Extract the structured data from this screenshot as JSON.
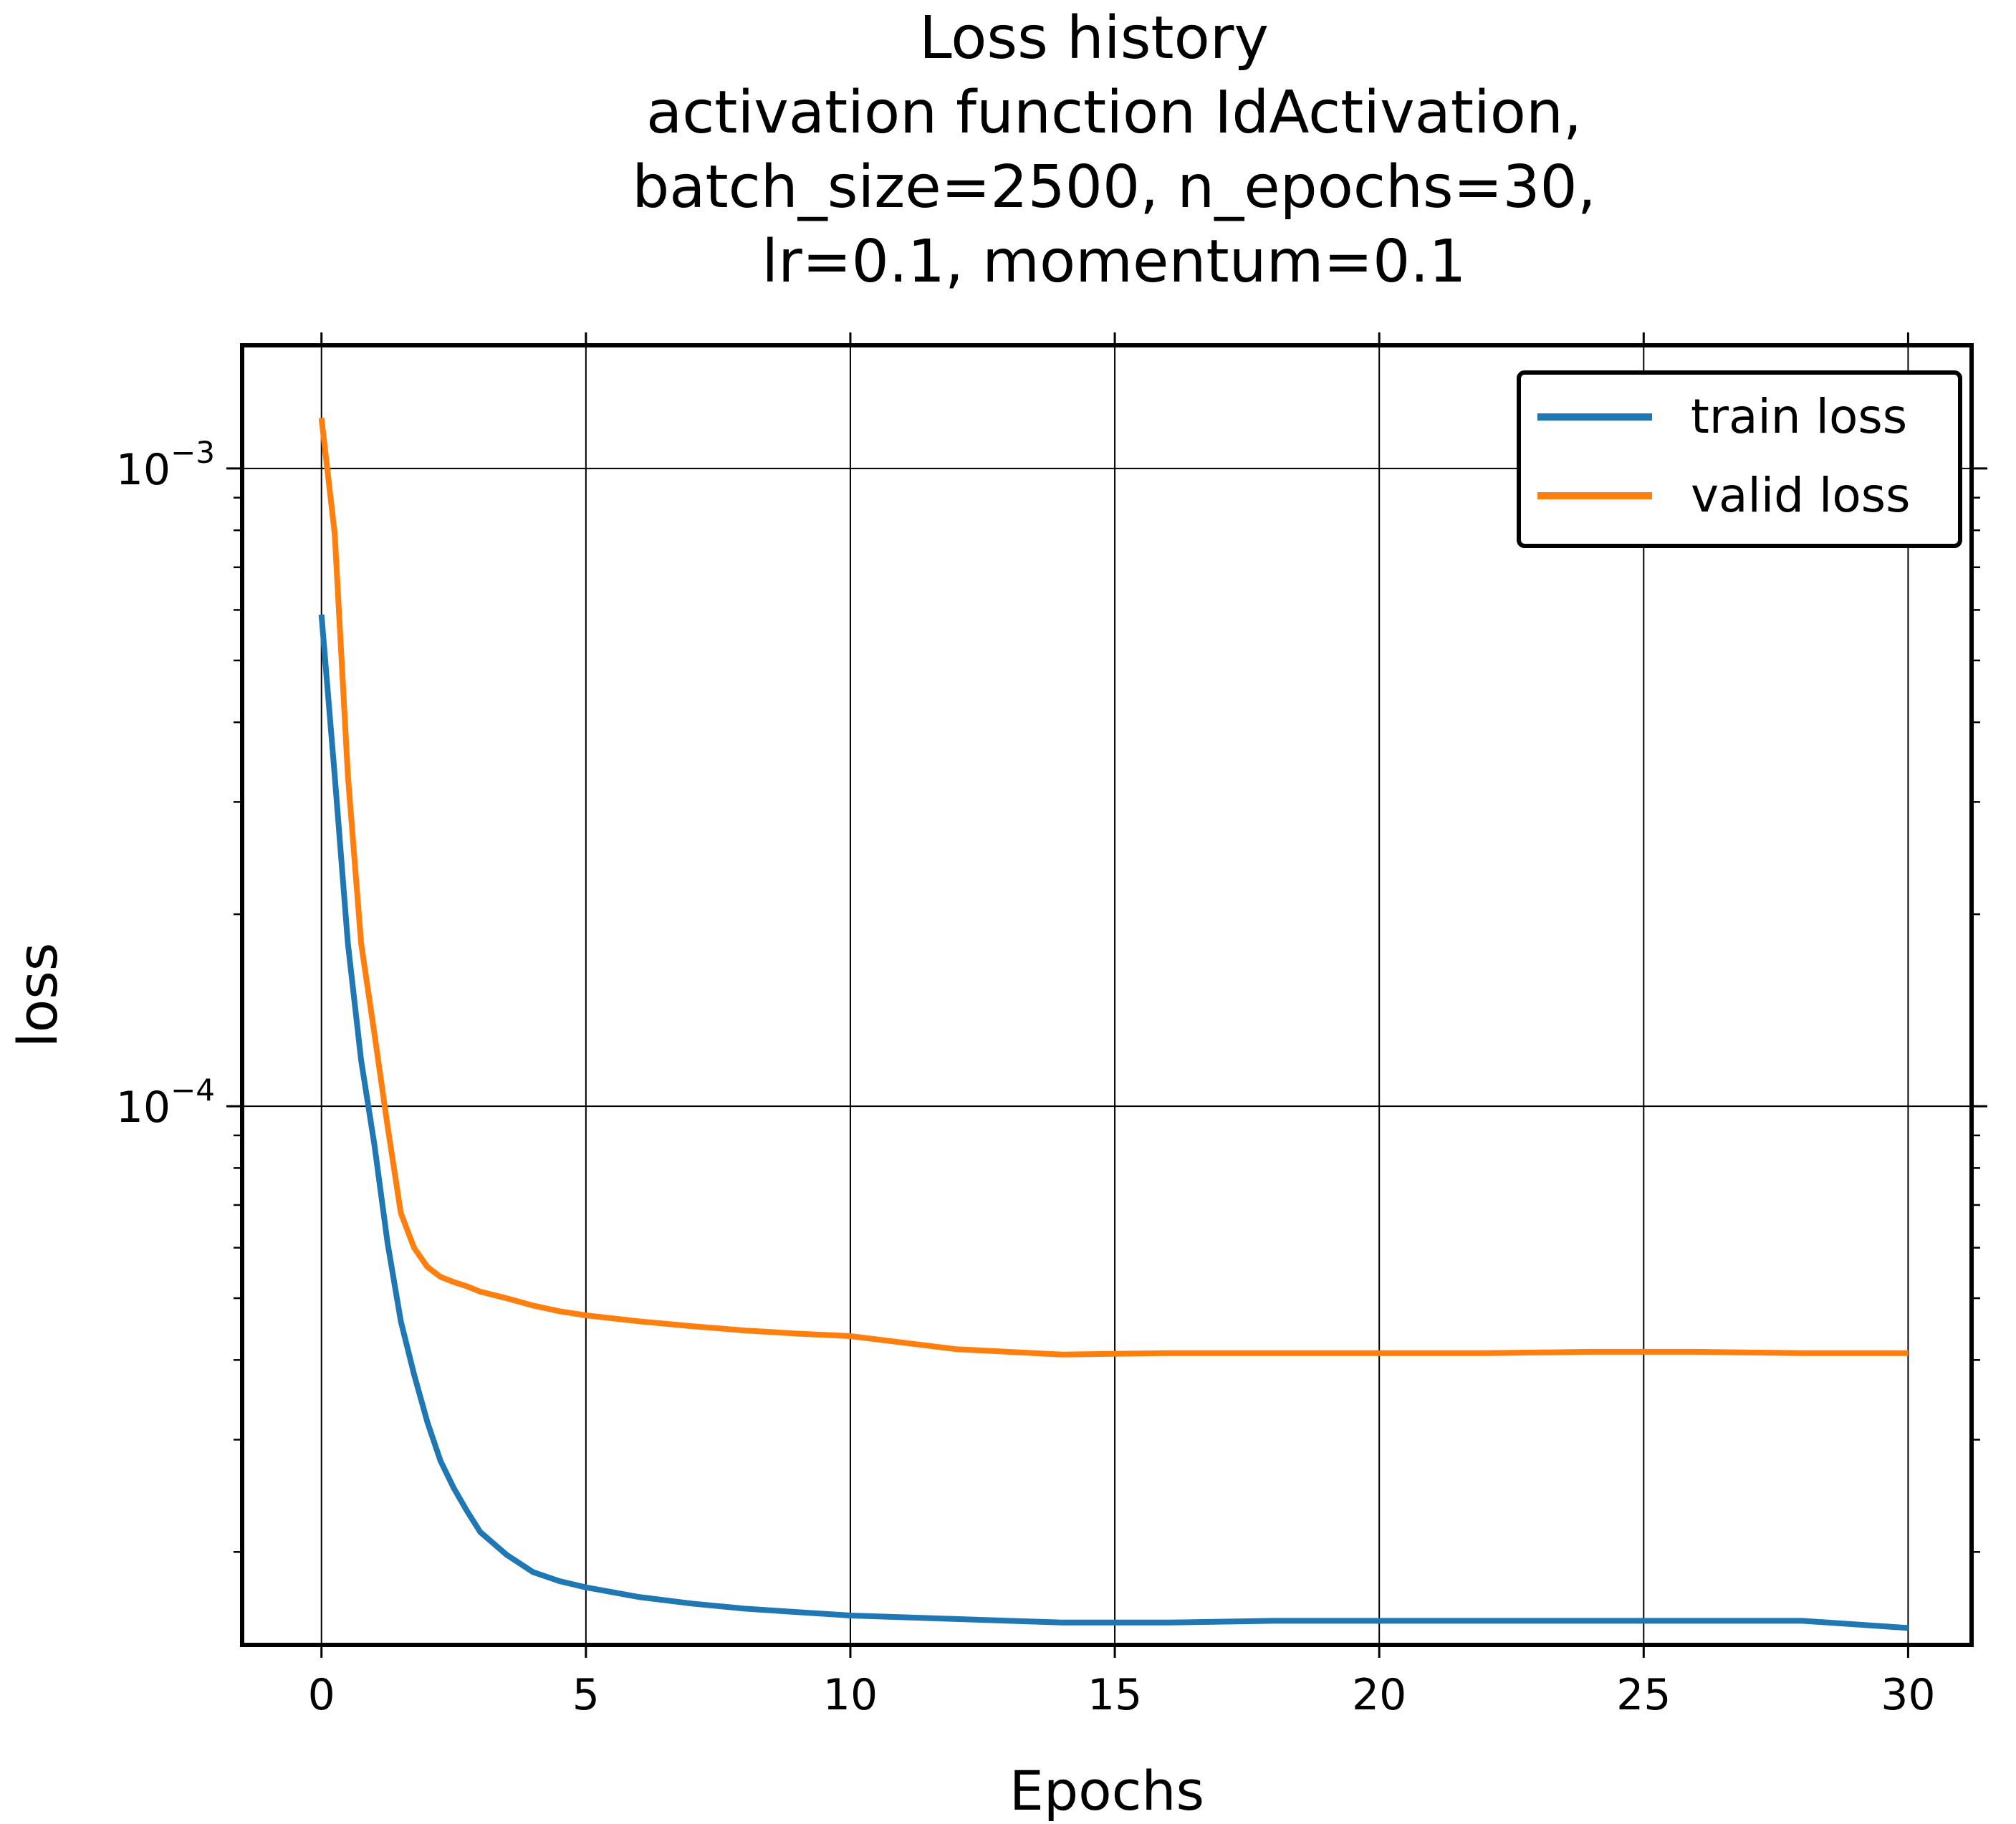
{
  "chart_data": {
    "type": "line",
    "title": "Loss history\nactivation function IdActivation,\nbatch_size=2500, n_epochs=30,\nlr=0.1, momentum=0.1",
    "title_lines": [
      "Loss history",
      "activation function IdActivation,",
      "batch_size=2500, n_epochs=30,",
      "lr=0.1, momentum=0.1"
    ],
    "xlabel": "Epochs",
    "ylabel": "loss",
    "yscale": "log",
    "xlim": [
      -1.5,
      31.2
    ],
    "ylim": [
      1.43e-05,
      0.00156
    ],
    "grid": true,
    "legend_position": "top-right",
    "xticks": [
      0,
      5,
      10,
      15,
      20,
      25,
      30
    ],
    "xtick_labels": [
      "0",
      "5",
      "10",
      "15",
      "20",
      "25",
      "30"
    ],
    "yticks": [
      0.0001,
      0.001
    ],
    "ytick_labels": [
      {
        "base": "10",
        "exp": "−4"
      },
      {
        "base": "10",
        "exp": "−3"
      }
    ],
    "series": [
      {
        "name": "train loss",
        "color": "#1f77b4",
        "x": [
          0,
          0.25,
          0.5,
          0.75,
          1,
          1.25,
          1.5,
          1.75,
          2,
          2.25,
          2.5,
          2.75,
          3,
          3.5,
          4,
          4.5,
          5,
          6,
          7,
          8,
          9,
          10,
          12,
          14,
          16,
          18,
          20,
          22,
          24,
          26,
          28,
          30
        ],
        "y": [
          0.00059,
          0.00033,
          0.00018,
          0.000118,
          8.7e-05,
          6.1e-05,
          4.6e-05,
          3.8e-05,
          3.2e-05,
          2.78e-05,
          2.52e-05,
          2.32e-05,
          2.15e-05,
          1.98e-05,
          1.86e-05,
          1.8e-05,
          1.76e-05,
          1.7e-05,
          1.66e-05,
          1.63e-05,
          1.61e-05,
          1.59e-05,
          1.57e-05,
          1.55e-05,
          1.55e-05,
          1.56e-05,
          1.56e-05,
          1.56e-05,
          1.56e-05,
          1.56e-05,
          1.56e-05,
          1.52e-05
        ]
      },
      {
        "name": "valid loss",
        "color": "#ff7f0e",
        "x": [
          0,
          0.25,
          0.5,
          0.75,
          1,
          1.25,
          1.5,
          1.75,
          2,
          2.25,
          2.5,
          2.75,
          3,
          3.5,
          4,
          4.5,
          5,
          6,
          7,
          8,
          9,
          10,
          12,
          14,
          16,
          18,
          20,
          22,
          24,
          26,
          28,
          30
        ],
        "y": [
          0.0012,
          0.00079,
          0.00033,
          0.00018,
          0.00013,
          9.3e-05,
          6.8e-05,
          6e-05,
          5.6e-05,
          5.4e-05,
          5.3e-05,
          5.22e-05,
          5.12e-05,
          5e-05,
          4.87e-05,
          4.77e-05,
          4.7e-05,
          4.6e-05,
          4.52e-05,
          4.45e-05,
          4.4e-05,
          4.36e-05,
          4.16e-05,
          4.08e-05,
          4.1e-05,
          4.1e-05,
          4.1e-05,
          4.1e-05,
          4.12e-05,
          4.12e-05,
          4.1e-05,
          4.1e-05
        ]
      }
    ]
  }
}
